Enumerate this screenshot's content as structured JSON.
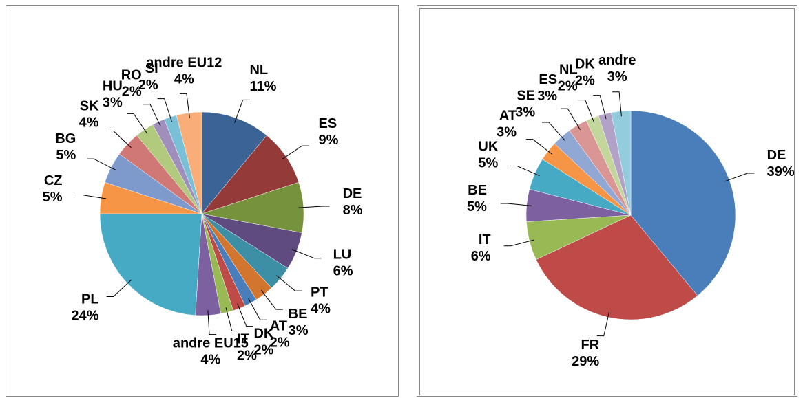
{
  "chart_data": [
    {
      "type": "pie",
      "categories": [
        "NL",
        "ES",
        "DE",
        "LU",
        "PT",
        "BE",
        "AT",
        "DK",
        "IT",
        "andre EU15",
        "PL",
        "CZ",
        "BG",
        "SK",
        "HU",
        "RO",
        "SI",
        "andre EU12"
      ],
      "values": [
        11,
        9,
        8,
        6,
        4,
        3,
        2,
        2,
        2,
        4,
        24,
        5,
        5,
        4,
        3,
        2,
        2,
        4
      ],
      "value_labels": [
        "11%",
        "9%",
        "8%",
        "6%",
        "4%",
        "3%",
        "2%",
        "2%",
        "2%",
        "4%",
        "24%",
        "5%",
        "5%",
        "4%",
        "3%",
        "2%",
        "2%",
        "4%"
      ],
      "colors": [
        "#3c6396",
        "#943b39",
        "#77923c",
        "#5f4b80",
        "#3c8fa4",
        "#d1752f",
        "#4a7ebb",
        "#be4b48",
        "#98b954",
        "#7d60a0",
        "#46aac5",
        "#f69546",
        "#7e9acd",
        "#d07876",
        "#b2ca7d",
        "#a08fbd",
        "#79c0d6",
        "#f9ae7a"
      ]
    },
    {
      "type": "pie",
      "categories": [
        "DE",
        "FR",
        "IT",
        "BE",
        "UK",
        "AT",
        "SE",
        "ES",
        "NL",
        "DK",
        "andre"
      ],
      "values": [
        39,
        29,
        6,
        5,
        5,
        3,
        3,
        3,
        2,
        2,
        3
      ],
      "value_labels": [
        "39%",
        "29%",
        "6%",
        "5%",
        "5%",
        "3%",
        "3%",
        "3%",
        "2%",
        "2%",
        "3%"
      ],
      "colors": [
        "#4a7ebb",
        "#be4b48",
        "#98b954",
        "#7d60a0",
        "#46aac5",
        "#f69546",
        "#91a8d4",
        "#d99694",
        "#c3d69b",
        "#b3a2c7",
        "#93cddd"
      ]
    }
  ]
}
